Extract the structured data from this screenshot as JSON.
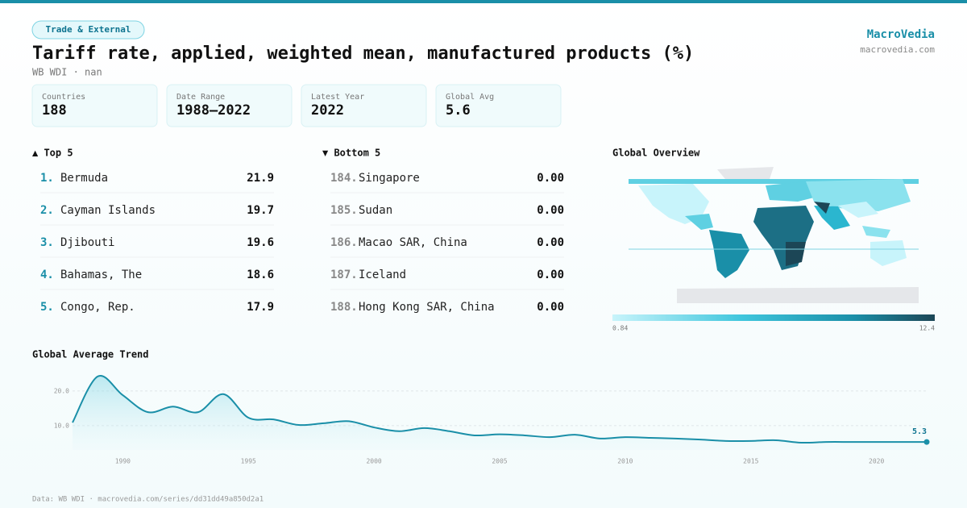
{
  "header": {
    "badge": "Trade & External",
    "title": "Tariff rate, applied, weighted mean, manufactured products (%)",
    "subtitle": "WB WDI · nan",
    "brand": "MacroVedia",
    "site": "macrovedia.com"
  },
  "stats": [
    {
      "label": "Countries",
      "value": "188"
    },
    {
      "label": "Date Range",
      "value": "1988–2022"
    },
    {
      "label": "Latest Year",
      "value": "2022"
    },
    {
      "label": "Global Avg",
      "value": "5.6"
    }
  ],
  "top": {
    "heading": "▲ Top 5",
    "rows": [
      {
        "rank": "1.",
        "name": "Bermuda",
        "value": "21.9"
      },
      {
        "rank": "2.",
        "name": "Cayman Islands",
        "value": "19.7"
      },
      {
        "rank": "3.",
        "name": "Djibouti",
        "value": "19.6"
      },
      {
        "rank": "4.",
        "name": "Bahamas, The",
        "value": "18.6"
      },
      {
        "rank": "5.",
        "name": "Congo, Rep.",
        "value": "17.9"
      }
    ]
  },
  "bottom": {
    "heading": "▼ Bottom 5",
    "rows": [
      {
        "rank": "184.",
        "name": "Singapore",
        "value": "0.00"
      },
      {
        "rank": "185.",
        "name": "Sudan",
        "value": "0.00"
      },
      {
        "rank": "186.",
        "name": "Macao SAR, China",
        "value": "0.00"
      },
      {
        "rank": "187.",
        "name": "Iceland",
        "value": "0.00"
      },
      {
        "rank": "188.",
        "name": "Hong Kong SAR, China",
        "value": "0.00"
      }
    ]
  },
  "map": {
    "title": "Global Overview",
    "legend_min": 0.84,
    "legend_max": 12.4
  },
  "chart_data": {
    "type": "line",
    "title": "Global Average Trend",
    "color": "#1a8fa8",
    "x": [
      1988,
      1989,
      1990,
      1991,
      1992,
      1993,
      1994,
      1995,
      1996,
      1997,
      1998,
      1999,
      2000,
      2001,
      2002,
      2003,
      2004,
      2005,
      2006,
      2007,
      2008,
      2009,
      2010,
      2011,
      2012,
      2013,
      2014,
      2015,
      2016,
      2017,
      2018,
      2019,
      2020,
      2021,
      2022
    ],
    "values": [
      10.9,
      24.2,
      18.8,
      13.9,
      15.5,
      13.9,
      19.1,
      12.3,
      11.8,
      10.2,
      10.7,
      11.3,
      9.5,
      8.4,
      9.3,
      8.4,
      7.2,
      7.5,
      7.2,
      6.7,
      7.4,
      6.3,
      6.7,
      6.5,
      6.3,
      6.0,
      5.6,
      5.6,
      5.8,
      5.1,
      5.3,
      5.3,
      5.3,
      5.3,
      5.3
    ],
    "end_label": "5.3",
    "xlim": [
      1988,
      2022
    ],
    "xticks": [
      1990,
      1995,
      2000,
      2005,
      2010,
      2015,
      2020
    ],
    "ylim": [
      3.0,
      25.8
    ],
    "yticks": [
      {
        "value": 10,
        "label": "10.0"
      },
      {
        "value": 20,
        "label": "20.0"
      }
    ],
    "grid": true
  },
  "footer": "Data: WB WDI · macrovedia.com/series/dd31dd49a850d2a1"
}
